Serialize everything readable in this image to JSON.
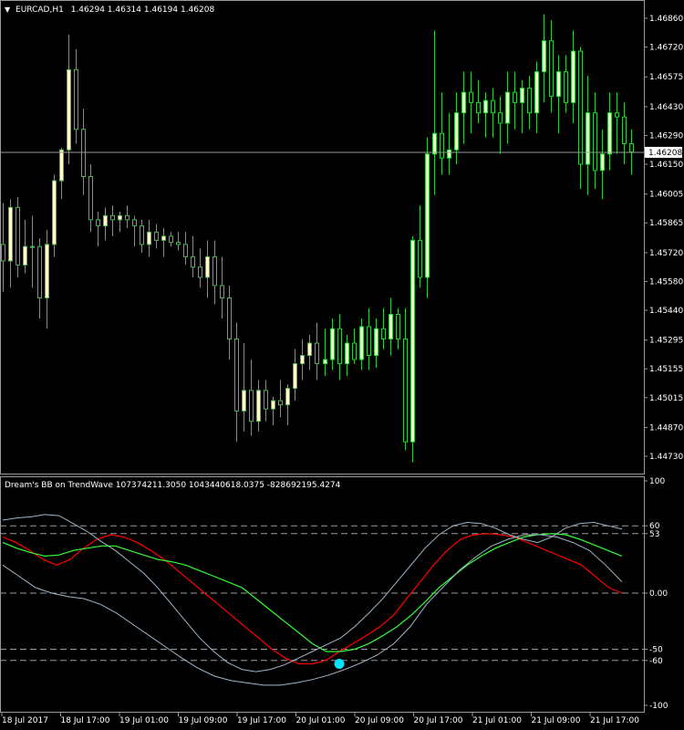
{
  "colors": {
    "background": "#000000",
    "frame": "#9a9a9a",
    "text": "#ffffff",
    "bull_body": "#ffffcc",
    "bear_body": "#000000",
    "wick": "#2ecc40",
    "price_line": "#9a9a9a",
    "price_tag_bg": "#ffffff",
    "price_tag_text": "#000000",
    "bb_band": "#9fb7cc",
    "bb_line": "#ff0000",
    "wave_line": "#33ff33",
    "level_line": "#9a9a9a",
    "dot": "#00e5ff"
  },
  "main_header": {
    "symbol_text": "EURCAD,H1",
    "ohlc_text": "1.46294 1.46314 1.46194 1.46208"
  },
  "sub_header": {
    "text": "Dream's BB on TrendWave 107374211.3050 1043440618.0375 -828692195.4274"
  },
  "current_price": 1.46208,
  "current_price_label": "1.46208",
  "price_axis_labels": [
    "1.46860",
    "1.46720",
    "1.46575",
    "1.46430",
    "1.46290",
    "1.46150",
    "1.46005",
    "1.45865",
    "1.45720",
    "1.45580",
    "1.45440",
    "1.45295",
    "1.45155",
    "1.45015",
    "1.44870",
    "1.44730"
  ],
  "osc_axis_labels": [
    "100",
    "60",
    "53",
    "0.00",
    "-50",
    "-60",
    "-100"
  ],
  "time_labels": [
    "18 Jul 2017",
    "18 Jul 17:00",
    "19 Jul 01:00",
    "19 Jul 09:00",
    "19 Jul 17:00",
    "20 Jul 01:00",
    "20 Jul 09:00",
    "20 Jul 17:00",
    "21 Jul 01:00",
    "21 Jul 09:00",
    "21 Jul 17:00"
  ],
  "chart_data": [
    {
      "type": "candlestick",
      "title": "EURCAD,H1",
      "ylim": [
        1.4465,
        1.4694
      ],
      "candles": [
        [
          1.4576,
          1.4596,
          1.4553,
          1.4568
        ],
        [
          1.4568,
          1.4598,
          1.4555,
          1.4594
        ],
        [
          1.4594,
          1.4599,
          1.456,
          1.4566
        ],
        [
          1.4566,
          1.4588,
          1.4562,
          1.4575
        ],
        [
          1.4575,
          1.459,
          1.4555,
          1.4575
        ],
        [
          1.4575,
          1.4579,
          1.454,
          1.455
        ],
        [
          1.455,
          1.4583,
          1.4535,
          1.4576
        ],
        [
          1.4576,
          1.461,
          1.457,
          1.4607
        ],
        [
          1.4607,
          1.4623,
          1.4598,
          1.4622
        ],
        [
          1.4622,
          1.4678,
          1.4615,
          1.4661
        ],
        [
          1.4661,
          1.4671,
          1.4625,
          1.4632
        ],
        [
          1.4632,
          1.4642,
          1.46,
          1.4609
        ],
        [
          1.4609,
          1.4615,
          1.4582,
          1.4588
        ],
        [
          1.4588,
          1.4592,
          1.4575,
          1.4585
        ],
        [
          1.4585,
          1.4594,
          1.4578,
          1.459
        ],
        [
          1.459,
          1.4595,
          1.458,
          1.4588
        ],
        [
          1.4588,
          1.4592,
          1.4582,
          1.459
        ],
        [
          1.459,
          1.4595,
          1.4584,
          1.4588
        ],
        [
          1.4588,
          1.459,
          1.4575,
          1.4585
        ],
        [
          1.4585,
          1.4588,
          1.4572,
          1.4576
        ],
        [
          1.4576,
          1.4588,
          1.457,
          1.4582
        ],
        [
          1.4582,
          1.4586,
          1.4574,
          1.4578
        ],
        [
          1.4578,
          1.4584,
          1.457,
          1.458
        ],
        [
          1.458,
          1.4582,
          1.4575,
          1.4577
        ],
        [
          1.4577,
          1.4582,
          1.4573,
          1.4576
        ],
        [
          1.4576,
          1.4582,
          1.4566,
          1.457
        ],
        [
          1.457,
          1.458,
          1.456,
          1.4565
        ],
        [
          1.4565,
          1.4574,
          1.4555,
          1.456
        ],
        [
          1.456,
          1.4578,
          1.455,
          1.457
        ],
        [
          1.457,
          1.4578,
          1.4547,
          1.4556
        ],
        [
          1.4556,
          1.457,
          1.454,
          1.455
        ],
        [
          1.455,
          1.4556,
          1.452,
          1.453
        ],
        [
          1.453,
          1.4538,
          1.448,
          1.4495
        ],
        [
          1.4495,
          1.4528,
          1.4485,
          1.4505
        ],
        [
          1.4505,
          1.452,
          1.4483,
          1.449
        ],
        [
          1.449,
          1.451,
          1.4485,
          1.4505
        ],
        [
          1.4505,
          1.451,
          1.449,
          1.4496
        ],
        [
          1.4496,
          1.4502,
          1.4488,
          1.45
        ],
        [
          1.45,
          1.451,
          1.4492,
          1.4498
        ],
        [
          1.4498,
          1.4508,
          1.4488,
          1.4506
        ],
        [
          1.4506,
          1.4525,
          1.45,
          1.4518
        ],
        [
          1.4518,
          1.453,
          1.451,
          1.4522
        ],
        [
          1.4522,
          1.4532,
          1.4515,
          1.4528
        ],
        [
          1.4528,
          1.4538,
          1.451,
          1.4518
        ],
        [
          1.4518,
          1.4535,
          1.4512,
          1.452
        ],
        [
          1.452,
          1.454,
          1.4515,
          1.4535
        ],
        [
          1.4535,
          1.4542,
          1.451,
          1.4518
        ],
        [
          1.4518,
          1.4532,
          1.4512,
          1.4528
        ],
        [
          1.4528,
          1.4535,
          1.4518,
          1.452
        ],
        [
          1.452,
          1.454,
          1.4515,
          1.4536
        ],
        [
          1.4536,
          1.4545,
          1.4515,
          1.4522
        ],
        [
          1.4522,
          1.454,
          1.4516,
          1.4535
        ],
        [
          1.4535,
          1.4545,
          1.4525,
          1.453
        ],
        [
          1.453,
          1.455,
          1.4522,
          1.4542
        ],
        [
          1.4542,
          1.4545,
          1.4525,
          1.453
        ],
        [
          1.453,
          1.4545,
          1.4476,
          1.448
        ],
        [
          1.448,
          1.458,
          1.447,
          1.4578
        ],
        [
          1.4578,
          1.4595,
          1.4555,
          1.456
        ],
        [
          1.456,
          1.4628,
          1.455,
          1.462
        ],
        [
          1.462,
          1.468,
          1.46,
          1.463
        ],
        [
          1.463,
          1.465,
          1.461,
          1.4618
        ],
        [
          1.4618,
          1.464,
          1.461,
          1.4622
        ],
        [
          1.4622,
          1.465,
          1.4615,
          1.464
        ],
        [
          1.464,
          1.466,
          1.4625,
          1.465
        ],
        [
          1.465,
          1.466,
          1.463,
          1.4645
        ],
        [
          1.4645,
          1.4656,
          1.4635,
          1.464
        ],
        [
          1.464,
          1.465,
          1.4628,
          1.4646
        ],
        [
          1.4646,
          1.4652,
          1.4628,
          1.464
        ],
        [
          1.464,
          1.4648,
          1.462,
          1.4635
        ],
        [
          1.4635,
          1.466,
          1.4625,
          1.465
        ],
        [
          1.465,
          1.466,
          1.4632,
          1.4645
        ],
        [
          1.4645,
          1.4656,
          1.463,
          1.4652
        ],
        [
          1.4652,
          1.4658,
          1.4632,
          1.464
        ],
        [
          1.464,
          1.4665,
          1.463,
          1.466
        ],
        [
          1.466,
          1.4688,
          1.4645,
          1.4675
        ],
        [
          1.4675,
          1.4685,
          1.464,
          1.4648
        ],
        [
          1.4648,
          1.4668,
          1.463,
          1.466
        ],
        [
          1.466,
          1.4668,
          1.464,
          1.4645
        ],
        [
          1.4645,
          1.468,
          1.4635,
          1.467
        ],
        [
          1.467,
          1.4672,
          1.4603,
          1.4615
        ],
        [
          1.4615,
          1.4658,
          1.46,
          1.464
        ],
        [
          1.464,
          1.465,
          1.4603,
          1.4612
        ],
        [
          1.4612,
          1.4632,
          1.4598,
          1.462
        ],
        [
          1.462,
          1.465,
          1.4612,
          1.464
        ],
        [
          1.464,
          1.465,
          1.462,
          1.4638
        ],
        [
          1.4638,
          1.4645,
          1.4615,
          1.4625
        ],
        [
          1.4625,
          1.4632,
          1.461,
          1.4621
        ]
      ]
    },
    {
      "type": "line",
      "title": "Dream's BB on TrendWave",
      "ylim": [
        -100,
        100
      ],
      "levels": [
        60,
        53,
        0,
        -50,
        -60
      ],
      "series": [
        {
          "values": [
            50,
            45,
            38,
            30,
            25,
            30,
            40,
            48,
            52,
            50,
            45,
            38,
            30,
            20,
            10,
            0,
            -10,
            -20,
            -30,
            -40,
            -50,
            -58,
            -63,
            -63,
            -60,
            -52,
            -45,
            -38,
            -30,
            -20,
            -5,
            10,
            25,
            38,
            48,
            52,
            53,
            52,
            50,
            45,
            40,
            35,
            30,
            25,
            15,
            5,
            0
          ]
        },
        {
          "values": [
            45,
            40,
            36,
            33,
            34,
            38,
            40,
            42,
            42,
            38,
            34,
            30,
            28,
            25,
            20,
            15,
            10,
            5,
            -5,
            -15,
            -25,
            -35,
            -45,
            -52,
            -52,
            -50,
            -45,
            -38,
            -30,
            -20,
            -8,
            5,
            15,
            25,
            33,
            40,
            45,
            50,
            52,
            53,
            52,
            48,
            43,
            38,
            33
          ]
        },
        {
          "values": [
            65,
            67,
            68,
            70,
            69,
            62,
            55,
            46,
            38,
            28,
            18,
            5,
            -10,
            -25,
            -40,
            -52,
            -62,
            -68,
            -70,
            -68,
            -64,
            -58,
            -52,
            -46,
            -40,
            -30,
            -18,
            -5,
            10,
            25,
            40,
            52,
            60,
            63,
            62,
            58,
            52,
            48,
            45,
            50,
            58,
            62,
            63,
            60,
            57
          ]
        },
        {
          "values": [
            25,
            15,
            5,
            0,
            -3,
            -5,
            -10,
            -18,
            -28,
            -38,
            -48,
            -58,
            -67,
            -74,
            -78,
            -80,
            -82,
            -82,
            -80,
            -77,
            -73,
            -68,
            -62,
            -55,
            -45,
            -30,
            -10,
            5,
            20,
            32,
            42,
            48,
            52,
            52,
            50,
            45,
            38,
            25,
            10
          ]
        }
      ],
      "markers": [
        {
          "x": 25,
          "y": -63
        }
      ]
    }
  ]
}
